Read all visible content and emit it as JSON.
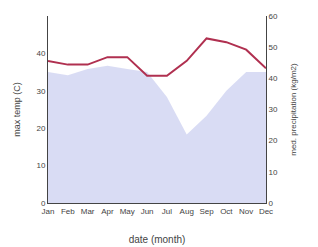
{
  "chart_data": {
    "type": "line",
    "x_label": "date (month)",
    "y_label": "max temp (C)",
    "y2_label": "med. precipitation (kg/m2)",
    "categories": [
      "Jan",
      "Feb",
      "Mar",
      "Apr",
      "May",
      "Jun",
      "Jul",
      "Aug",
      "Sep",
      "Oct",
      "Nov",
      "Dec"
    ],
    "series": [
      {
        "type": "area",
        "color": "#c5caee",
        "axis": "y2",
        "values": [
          42,
          41,
          43,
          44,
          43,
          42,
          34,
          22,
          28,
          36,
          42,
          42
        ]
      },
      {
        "type": "line",
        "color": "#b03050",
        "values": [
          38,
          37,
          37,
          39,
          39,
          34,
          34,
          38,
          44,
          43,
          41,
          36
        ]
      }
    ],
    "ylim": [
      0,
      50
    ],
    "yticks": [
      0,
      10,
      20,
      30,
      40
    ],
    "y2lim": [
      0,
      60
    ],
    "y2ticks": [
      0,
      10,
      20,
      30,
      40,
      50,
      60
    ],
    "grid": false
  }
}
